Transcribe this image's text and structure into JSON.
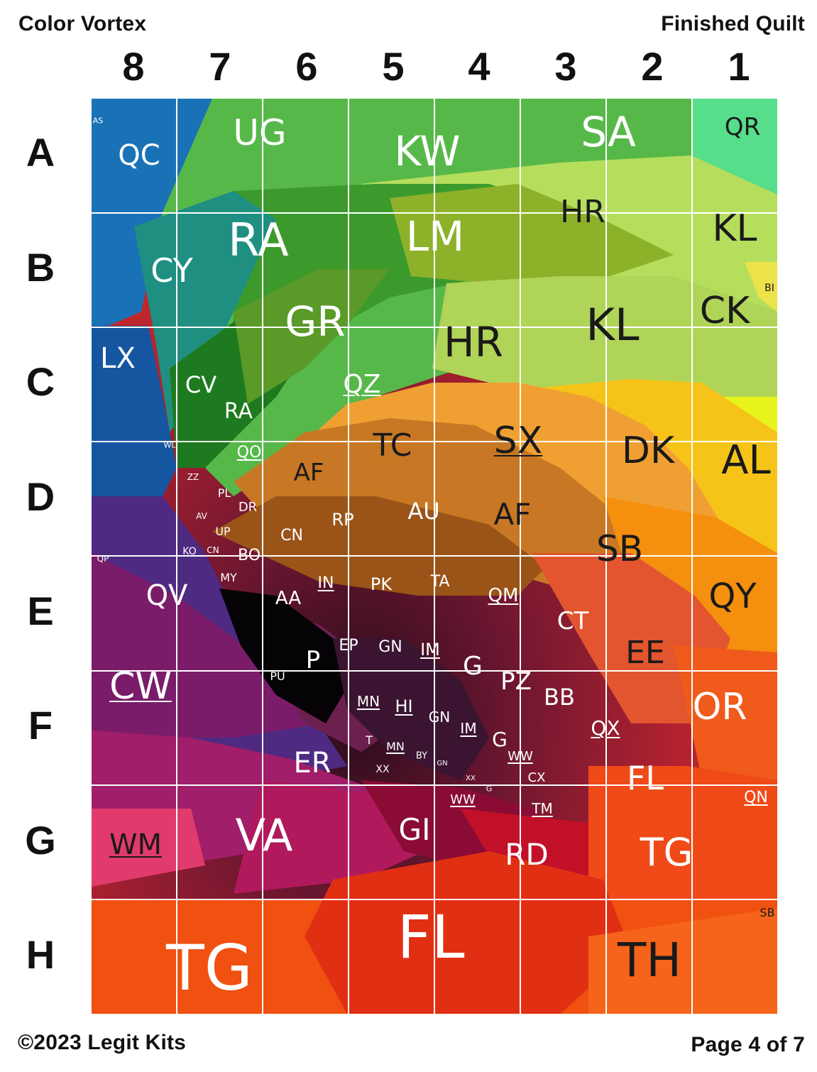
{
  "header": {
    "left_title": "Color Vortex",
    "right_title": "Finished Quilt"
  },
  "columns": [
    "8",
    "7",
    "6",
    "5",
    "4",
    "3",
    "2",
    "1"
  ],
  "rows": [
    "A",
    "B",
    "C",
    "D",
    "E",
    "F",
    "G",
    "H"
  ],
  "footer": {
    "copyright": "©2023 Legit Kits",
    "page": "Page 4 of 7"
  },
  "colors": {
    "grid_line": "#ffffff",
    "dark_text": "#1a1a1a",
    "light_text": "#ffffff"
  },
  "color_labels": [
    {
      "text": "AS",
      "u": false,
      "dark": false
    },
    {
      "text": "QC",
      "u": false,
      "dark": false
    },
    {
      "text": "UG",
      "u": false,
      "dark": false
    },
    {
      "text": "KW",
      "u": false,
      "dark": false
    },
    {
      "text": "SA",
      "u": false,
      "dark": false
    },
    {
      "text": "QR",
      "u": false,
      "dark": true
    },
    {
      "text": "RA",
      "u": false,
      "dark": false
    },
    {
      "text": "CY",
      "u": false,
      "dark": false
    },
    {
      "text": "LM",
      "u": false,
      "dark": false
    },
    {
      "text": "HR",
      "u": false,
      "dark": true
    },
    {
      "text": "KL",
      "u": false,
      "dark": true
    },
    {
      "text": "BI",
      "u": false,
      "dark": true
    },
    {
      "text": "GR",
      "u": false,
      "dark": false
    },
    {
      "text": "HR",
      "u": false,
      "dark": true
    },
    {
      "text": "KL",
      "u": false,
      "dark": true
    },
    {
      "text": "CK",
      "u": false,
      "dark": true
    },
    {
      "text": "LX",
      "u": false,
      "dark": false
    },
    {
      "text": "CV",
      "u": false,
      "dark": false
    },
    {
      "text": "RA",
      "u": false,
      "dark": false
    },
    {
      "text": "QZ",
      "u": true,
      "dark": false
    },
    {
      "text": "WL",
      "u": false,
      "dark": false
    },
    {
      "text": "QO",
      "u": true,
      "dark": false
    },
    {
      "text": "TC",
      "u": false,
      "dark": true
    },
    {
      "text": "SX",
      "u": true,
      "dark": true
    },
    {
      "text": "DK",
      "u": false,
      "dark": true
    },
    {
      "text": "AL",
      "u": false,
      "dark": true
    },
    {
      "text": "ZZ",
      "u": false,
      "dark": false
    },
    {
      "text": "AF",
      "u": false,
      "dark": true
    },
    {
      "text": "PL",
      "u": false,
      "dark": false
    },
    {
      "text": "DR",
      "u": false,
      "dark": false
    },
    {
      "text": "AV",
      "u": false,
      "dark": false
    },
    {
      "text": "RP",
      "u": false,
      "dark": false
    },
    {
      "text": "AU",
      "u": false,
      "dark": false
    },
    {
      "text": "AF",
      "u": false,
      "dark": true
    },
    {
      "text": "UP",
      "u": false,
      "dark": false
    },
    {
      "text": "CN",
      "u": false,
      "dark": false
    },
    {
      "text": "SB",
      "u": false,
      "dark": true
    },
    {
      "text": "KO",
      "u": false,
      "dark": false
    },
    {
      "text": "CN",
      "u": false,
      "dark": false
    },
    {
      "text": "BO",
      "u": false,
      "dark": false
    },
    {
      "text": "QP",
      "u": false,
      "dark": false
    },
    {
      "text": "MY",
      "u": false,
      "dark": false
    },
    {
      "text": "QV",
      "u": false,
      "dark": false
    },
    {
      "text": "AA",
      "u": false,
      "dark": false
    },
    {
      "text": "IN",
      "u": true,
      "dark": false
    },
    {
      "text": "PK",
      "u": false,
      "dark": false
    },
    {
      "text": "TA",
      "u": false,
      "dark": false
    },
    {
      "text": "QM",
      "u": true,
      "dark": false
    },
    {
      "text": "CT",
      "u": false,
      "dark": false
    },
    {
      "text": "QY",
      "u": false,
      "dark": true
    },
    {
      "text": "EE",
      "u": false,
      "dark": true
    },
    {
      "text": "P",
      "u": true,
      "dark": false
    },
    {
      "text": "EP",
      "u": false,
      "dark": false
    },
    {
      "text": "GN",
      "u": false,
      "dark": false
    },
    {
      "text": "IM",
      "u": true,
      "dark": false
    },
    {
      "text": "G",
      "u": false,
      "dark": false
    },
    {
      "text": "CW",
      "u": true,
      "dark": false
    },
    {
      "text": "PU",
      "u": false,
      "dark": false
    },
    {
      "text": "PZ",
      "u": false,
      "dark": false
    },
    {
      "text": "BB",
      "u": false,
      "dark": false
    },
    {
      "text": "OR",
      "u": false,
      "dark": false
    },
    {
      "text": "MN",
      "u": true,
      "dark": false
    },
    {
      "text": "HI",
      "u": true,
      "dark": false
    },
    {
      "text": "GN",
      "u": false,
      "dark": false
    },
    {
      "text": "IM",
      "u": true,
      "dark": false
    },
    {
      "text": "QX",
      "u": true,
      "dark": false
    },
    {
      "text": "G",
      "u": false,
      "dark": false
    },
    {
      "text": "T",
      "u": false,
      "dark": false
    },
    {
      "text": "MN",
      "u": true,
      "dark": false
    },
    {
      "text": "ER",
      "u": false,
      "dark": false
    },
    {
      "text": "BY",
      "u": false,
      "dark": false
    },
    {
      "text": "WW",
      "u": true,
      "dark": false
    },
    {
      "text": "XX",
      "u": false,
      "dark": false
    },
    {
      "text": "GN",
      "u": false,
      "dark": false
    },
    {
      "text": "CX",
      "u": false,
      "dark": false
    },
    {
      "text": "FL",
      "u": false,
      "dark": false
    },
    {
      "text": "XX",
      "u": false,
      "dark": false
    },
    {
      "text": "G",
      "u": false,
      "dark": false
    },
    {
      "text": "QN",
      "u": true,
      "dark": false
    },
    {
      "text": "WW",
      "u": true,
      "dark": false
    },
    {
      "text": "TM",
      "u": true,
      "dark": false
    },
    {
      "text": "GI",
      "u": false,
      "dark": false
    },
    {
      "text": "WM",
      "u": true,
      "dark": true
    },
    {
      "text": "VA",
      "u": false,
      "dark": false
    },
    {
      "text": "RD",
      "u": false,
      "dark": false
    },
    {
      "text": "TG",
      "u": false,
      "dark": false
    },
    {
      "text": "SB",
      "u": false,
      "dark": true
    },
    {
      "text": "FL",
      "u": false,
      "dark": false
    },
    {
      "text": "TG",
      "u": false,
      "dark": false
    },
    {
      "text": "TH",
      "u": false,
      "dark": true
    }
  ]
}
